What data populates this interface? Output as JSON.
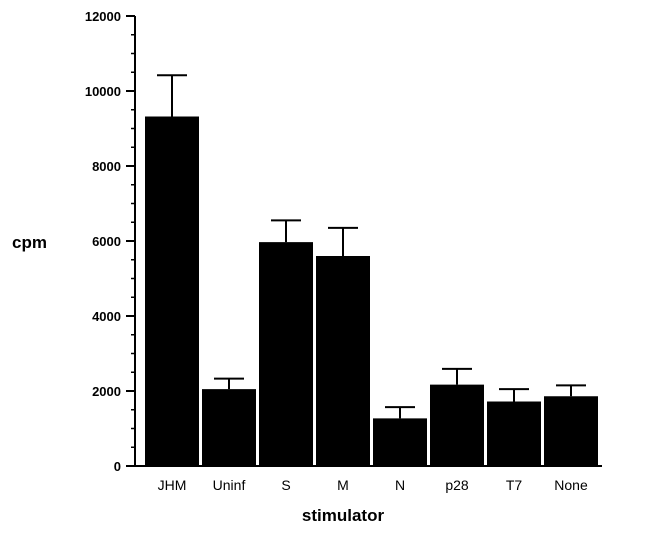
{
  "chart_data": {
    "type": "bar",
    "title": "",
    "xlabel": "stimulator",
    "ylabel": "cpm",
    "categories": [
      "JHM",
      "Uninf",
      "S",
      "M",
      "N",
      "p28",
      "T7",
      "None"
    ],
    "values": [
      9320,
      2050,
      5970,
      5600,
      1270,
      2170,
      1720,
      1860
    ],
    "error": [
      1100,
      280,
      580,
      750,
      300,
      420,
      330,
      290
    ],
    "ylim": [
      0,
      12000
    ],
    "yticks": [
      0,
      2000,
      4000,
      6000,
      8000,
      10000,
      12000
    ],
    "y_minor_step": 500,
    "grid": false,
    "legend": "none",
    "bar_color": "#000000"
  }
}
